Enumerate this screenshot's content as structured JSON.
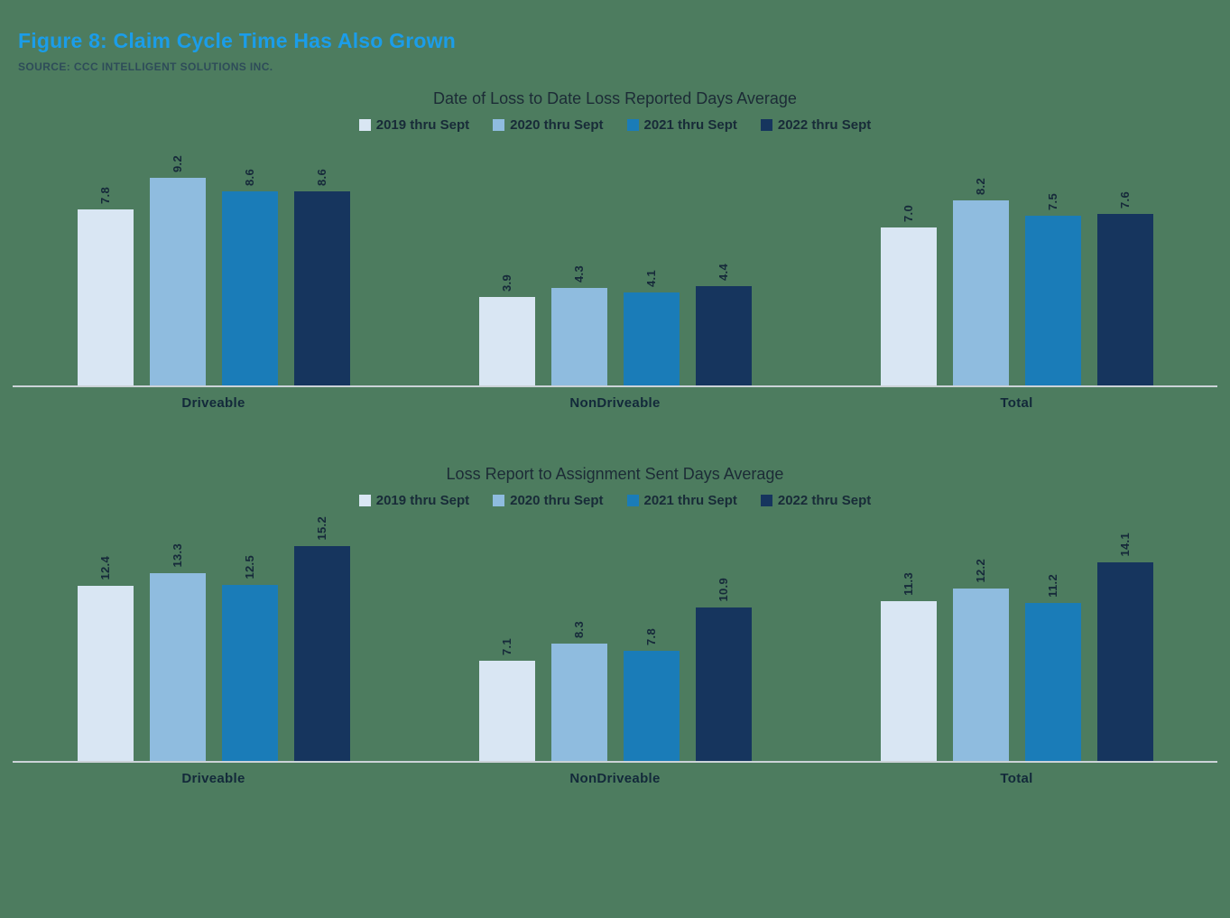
{
  "figure": {
    "title": "Figure 8: Claim Cycle Time Has Also Grown",
    "source": "SOURCE: CCC INTELLIGENT SOLUTIONS INC."
  },
  "colors": {
    "background": "#4d7c5f",
    "title_accent": "#1b9de9",
    "axis_line": "#ccd3d8",
    "series": [
      "#d9e6f3",
      "#8fbcdf",
      "#1a7cb8",
      "#16355e"
    ]
  },
  "chart_data": [
    {
      "type": "bar",
      "title": "Date of Loss to Date Loss Reported Days Average",
      "categories": [
        "Driveable",
        "NonDriveable",
        "Total"
      ],
      "series": [
        {
          "name": "2019 thru Sept",
          "values": [
            7.8,
            3.9,
            7.0
          ]
        },
        {
          "name": "2020 thru Sept",
          "values": [
            9.2,
            4.3,
            8.2
          ]
        },
        {
          "name": "2021 thru Sept",
          "values": [
            8.6,
            4.1,
            7.5
          ]
        },
        {
          "name": "2022 thru Sept",
          "values": [
            8.6,
            4.4,
            7.6
          ]
        }
      ],
      "ylim": [
        0,
        10
      ],
      "grid": false,
      "legend_position": "top",
      "value_labels": "rotated-90"
    },
    {
      "type": "bar",
      "title": "Loss Report to Assignment Sent Days Average",
      "categories": [
        "Driveable",
        "NonDriveable",
        "Total"
      ],
      "series": [
        {
          "name": "2019 thru Sept",
          "values": [
            12.4,
            7.1,
            11.3
          ]
        },
        {
          "name": "2020 thru Sept",
          "values": [
            13.3,
            8.3,
            12.2
          ]
        },
        {
          "name": "2021 thru Sept",
          "values": [
            12.5,
            7.8,
            11.2
          ]
        },
        {
          "name": "2022 thru Sept",
          "values": [
            15.2,
            10.9,
            14.1
          ]
        }
      ],
      "ylim": [
        0,
        16
      ],
      "grid": false,
      "legend_position": "top",
      "value_labels": "rotated-90"
    }
  ]
}
